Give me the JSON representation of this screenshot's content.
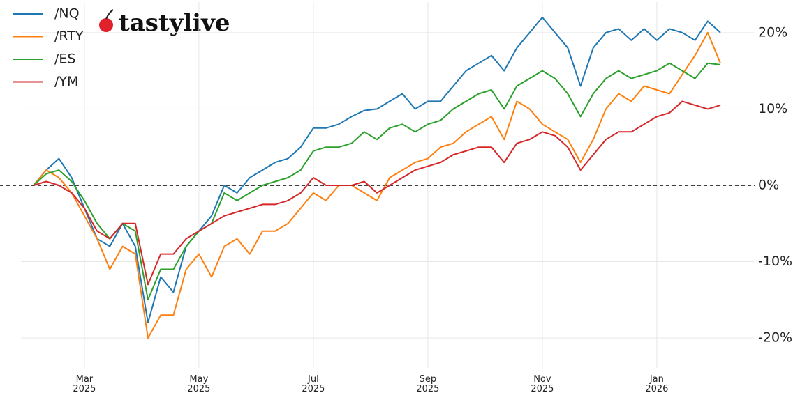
{
  "chart_data": {
    "type": "line",
    "watermark": "tastylive",
    "categories": [
      null,
      null,
      null,
      null,
      "Mar 2025",
      null,
      null,
      null,
      null,
      null,
      null,
      null,
      null,
      "May 2025",
      null,
      null,
      null,
      null,
      null,
      null,
      null,
      null,
      "Jul 2025",
      null,
      null,
      null,
      null,
      null,
      null,
      null,
      null,
      "Sep 2025",
      null,
      null,
      null,
      null,
      null,
      null,
      null,
      null,
      "Nov 2025",
      null,
      null,
      null,
      null,
      null,
      null,
      null,
      null,
      "Jan 2026",
      null,
      null,
      null,
      null,
      null
    ],
    "series": [
      {
        "name": "/NQ",
        "color": "#1f77b4",
        "values": [
          0,
          2,
          3.5,
          1,
          -3,
          -7,
          -8,
          -5,
          -8,
          -18,
          -12,
          -14,
          -8,
          -6,
          -4,
          0,
          -1,
          1,
          2,
          3,
          3.5,
          5,
          7.5,
          7.5,
          8,
          9,
          9.8,
          10,
          11,
          12,
          10,
          11,
          11,
          13,
          15,
          16,
          17,
          15,
          18,
          20,
          22,
          20,
          18,
          13,
          18,
          20,
          20.5,
          19,
          20.5,
          19,
          20.5,
          20,
          19,
          21.5,
          20
        ]
      },
      {
        "name": "/RTY",
        "color": "#ff7f0e",
        "values": [
          0,
          2,
          1,
          -1,
          -4,
          -7,
          -11,
          -8,
          -9,
          -20,
          -17,
          -17,
          -11,
          -9,
          -12,
          -8,
          -7,
          -9,
          -6,
          -6,
          -5,
          -3,
          -1,
          -2,
          0,
          0,
          -1,
          -2,
          1,
          2,
          3,
          3.5,
          5,
          5.5,
          7,
          8,
          9,
          6,
          11,
          10,
          8,
          7,
          6,
          3,
          6,
          10,
          12,
          11,
          13,
          12.5,
          12,
          14.5,
          17,
          20,
          16
        ]
      },
      {
        "name": "/ES",
        "color": "#2ca02c",
        "values": [
          0,
          1.5,
          2,
          0.5,
          -2,
          -5,
          -7,
          -5,
          -6,
          -15,
          -11,
          -11,
          -8,
          -6,
          -5,
          -1,
          -2,
          -1,
          0,
          0.5,
          1,
          2,
          4.5,
          5,
          5,
          5.5,
          7,
          6,
          7.5,
          8,
          7,
          8,
          8.5,
          10,
          11,
          12,
          12.5,
          10,
          13,
          14,
          15,
          14,
          12,
          9,
          12,
          14,
          15,
          14,
          14.5,
          15,
          16,
          15,
          14,
          16,
          15.8
        ]
      },
      {
        "name": "/YM",
        "color": "#d62728",
        "values": [
          0,
          0.5,
          0,
          -1,
          -3,
          -6,
          -7,
          -5,
          -5,
          -13,
          -9,
          -9,
          -7,
          -6,
          -5,
          -4,
          -3.5,
          -3,
          -2.5,
          -2.5,
          -2,
          -1,
          1,
          0,
          0,
          0,
          0.5,
          -1,
          0,
          1,
          2,
          2.5,
          3,
          4,
          4.5,
          5,
          5,
          3,
          5.5,
          6,
          7,
          6.5,
          5,
          2,
          4,
          6,
          7,
          7,
          8,
          9,
          9.5,
          11,
          10.5,
          10,
          10.5
        ]
      }
    ],
    "ylim": [
      -23,
      24
    ],
    "yticks": [
      {
        "value": -20,
        "label": "-20%"
      },
      {
        "value": -10,
        "label": "-10%"
      },
      {
        "value": 0,
        "label": "0%"
      },
      {
        "value": 10,
        "label": "10%"
      },
      {
        "value": 20,
        "label": "20%"
      }
    ],
    "grid": true,
    "zero_line": true,
    "legend": "upper left"
  }
}
